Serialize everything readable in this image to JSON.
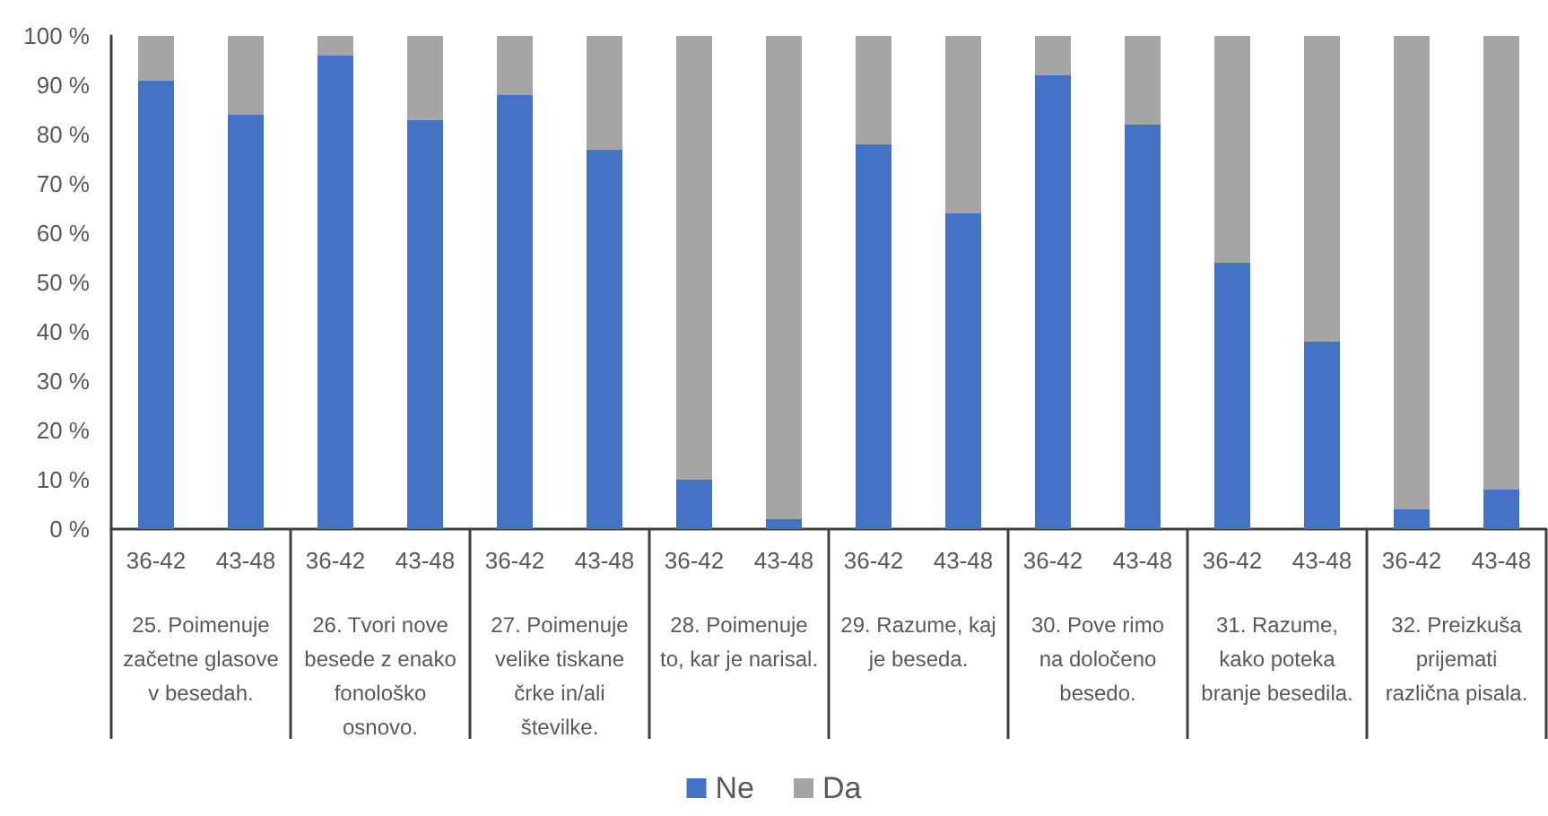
{
  "chart_data": {
    "type": "bar",
    "stacked": true,
    "categories": [
      "36-42",
      "43-48",
      "36-42",
      "43-48",
      "36-42",
      "43-48",
      "36-42",
      "43-48",
      "36-42",
      "43-48",
      "36-42",
      "43-48",
      "36-42",
      "43-48",
      "36-42",
      "43-48"
    ],
    "series": [
      {
        "name": "Ne",
        "color": "#4472c4",
        "values": [
          91,
          84,
          96,
          83,
          88,
          77,
          10,
          2,
          78,
          64,
          92,
          82,
          54,
          38,
          4,
          8
        ]
      },
      {
        "name": "Da",
        "color": "#a5a5a5",
        "values": [
          9,
          16,
          4,
          17,
          12,
          23,
          90,
          98,
          22,
          36,
          8,
          18,
          46,
          62,
          96,
          92
        ]
      }
    ],
    "annotations": [
      "25. Poimenuje začetne glasove v besedah.",
      "26. Tvori nove besede z enako fonološko osnovo.",
      "27. Poimenuje velike tiskane črke in/ali številke.",
      "28. Poimenuje to, kar je narisal.",
      "29. Razume, kaj je beseda.",
      "30. Pove rimo na določeno besedo.",
      "31. Razume, kako poteka branje besedila.",
      "32. Preizkuša prijemati različna pisala."
    ],
    "ylim": [
      0,
      100
    ],
    "yticks": [
      {
        "value": 0,
        "label": "0 %"
      },
      {
        "value": 10,
        "label": "10 %"
      },
      {
        "value": 20,
        "label": "20 %"
      },
      {
        "value": 30,
        "label": "30 %"
      },
      {
        "value": 40,
        "label": "40 %"
      },
      {
        "value": 50,
        "label": "50 %"
      },
      {
        "value": 60,
        "label": "60 %"
      },
      {
        "value": 70,
        "label": "70 %"
      },
      {
        "value": 80,
        "label": "80 %"
      },
      {
        "value": 90,
        "label": "90 %"
      },
      {
        "value": 100,
        "label": "100 %"
      }
    ],
    "grid": false,
    "legend": "bottom"
  }
}
